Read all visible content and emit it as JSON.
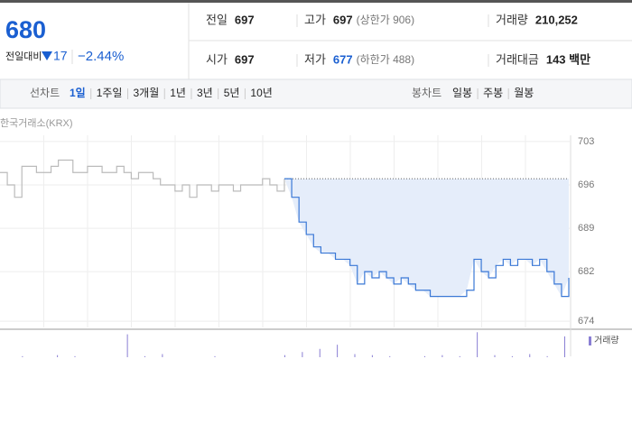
{
  "quote": {
    "price": "680",
    "change_label": "전일대비",
    "change": "17",
    "change_pct": "−2.44%"
  },
  "summary": [
    [
      {
        "label": "전일",
        "value": "697"
      },
      {
        "label": "고가",
        "value": "697",
        "note": "(상한가 906)"
      },
      {
        "label": "거래량",
        "value": "210,252"
      }
    ],
    [
      {
        "label": "시가",
        "value": "697"
      },
      {
        "label": "저가",
        "value": "677",
        "note": "(하한가 488)"
      },
      {
        "label": "거래대금",
        "value": "143 백만"
      }
    ]
  ],
  "tabs": {
    "line_label": "선차트",
    "line_periods": [
      "1일",
      "1주일",
      "3개월",
      "1년",
      "3년",
      "5년",
      "10년"
    ],
    "selected": "1일",
    "candle_label": "봉차트",
    "candle_periods": [
      "일봉",
      "주봉",
      "월봉"
    ]
  },
  "chart_data": {
    "type": "line",
    "source": "한국거래소(KRX)",
    "ylim": [
      673,
      704
    ],
    "yticks": [
      703,
      696,
      689,
      682,
      674
    ],
    "reference": 697,
    "grid": true,
    "series": [
      {
        "color": "#bbbbbb",
        "values": [
          698,
          696,
          694,
          699,
          699,
          698,
          698,
          699,
          700,
          700,
          698,
          698,
          699,
          699,
          698,
          698,
          699,
          698,
          697,
          698,
          698,
          697,
          696,
          696,
          695,
          696,
          694,
          696,
          696,
          695,
          696,
          696,
          695,
          696,
          696,
          696,
          697,
          696,
          695,
          697
        ]
      },
      {
        "color": "#3a78d6",
        "fill": "#e5edfa",
        "values": [
          697,
          694,
          690,
          688,
          686,
          685,
          685,
          684,
          684,
          683,
          680,
          682,
          681,
          682,
          681,
          680,
          681,
          680,
          679,
          679,
          678,
          678,
          678,
          678,
          678,
          679,
          684,
          682,
          681,
          683,
          684,
          683,
          684,
          684,
          683,
          684,
          682,
          680,
          678,
          681
        ]
      }
    ],
    "volume": {
      "name": "거래량",
      "color": "#8a7fd4",
      "vlim": [
        0,
        26
      ],
      "values": [
        0,
        1,
        0,
        2,
        1,
        0,
        0,
        22,
        1,
        3,
        0,
        0,
        1,
        0,
        0,
        0,
        2,
        5,
        8,
        12,
        3,
        2,
        1,
        0,
        1,
        2,
        1,
        24,
        2,
        1,
        3,
        1,
        20
      ]
    }
  }
}
